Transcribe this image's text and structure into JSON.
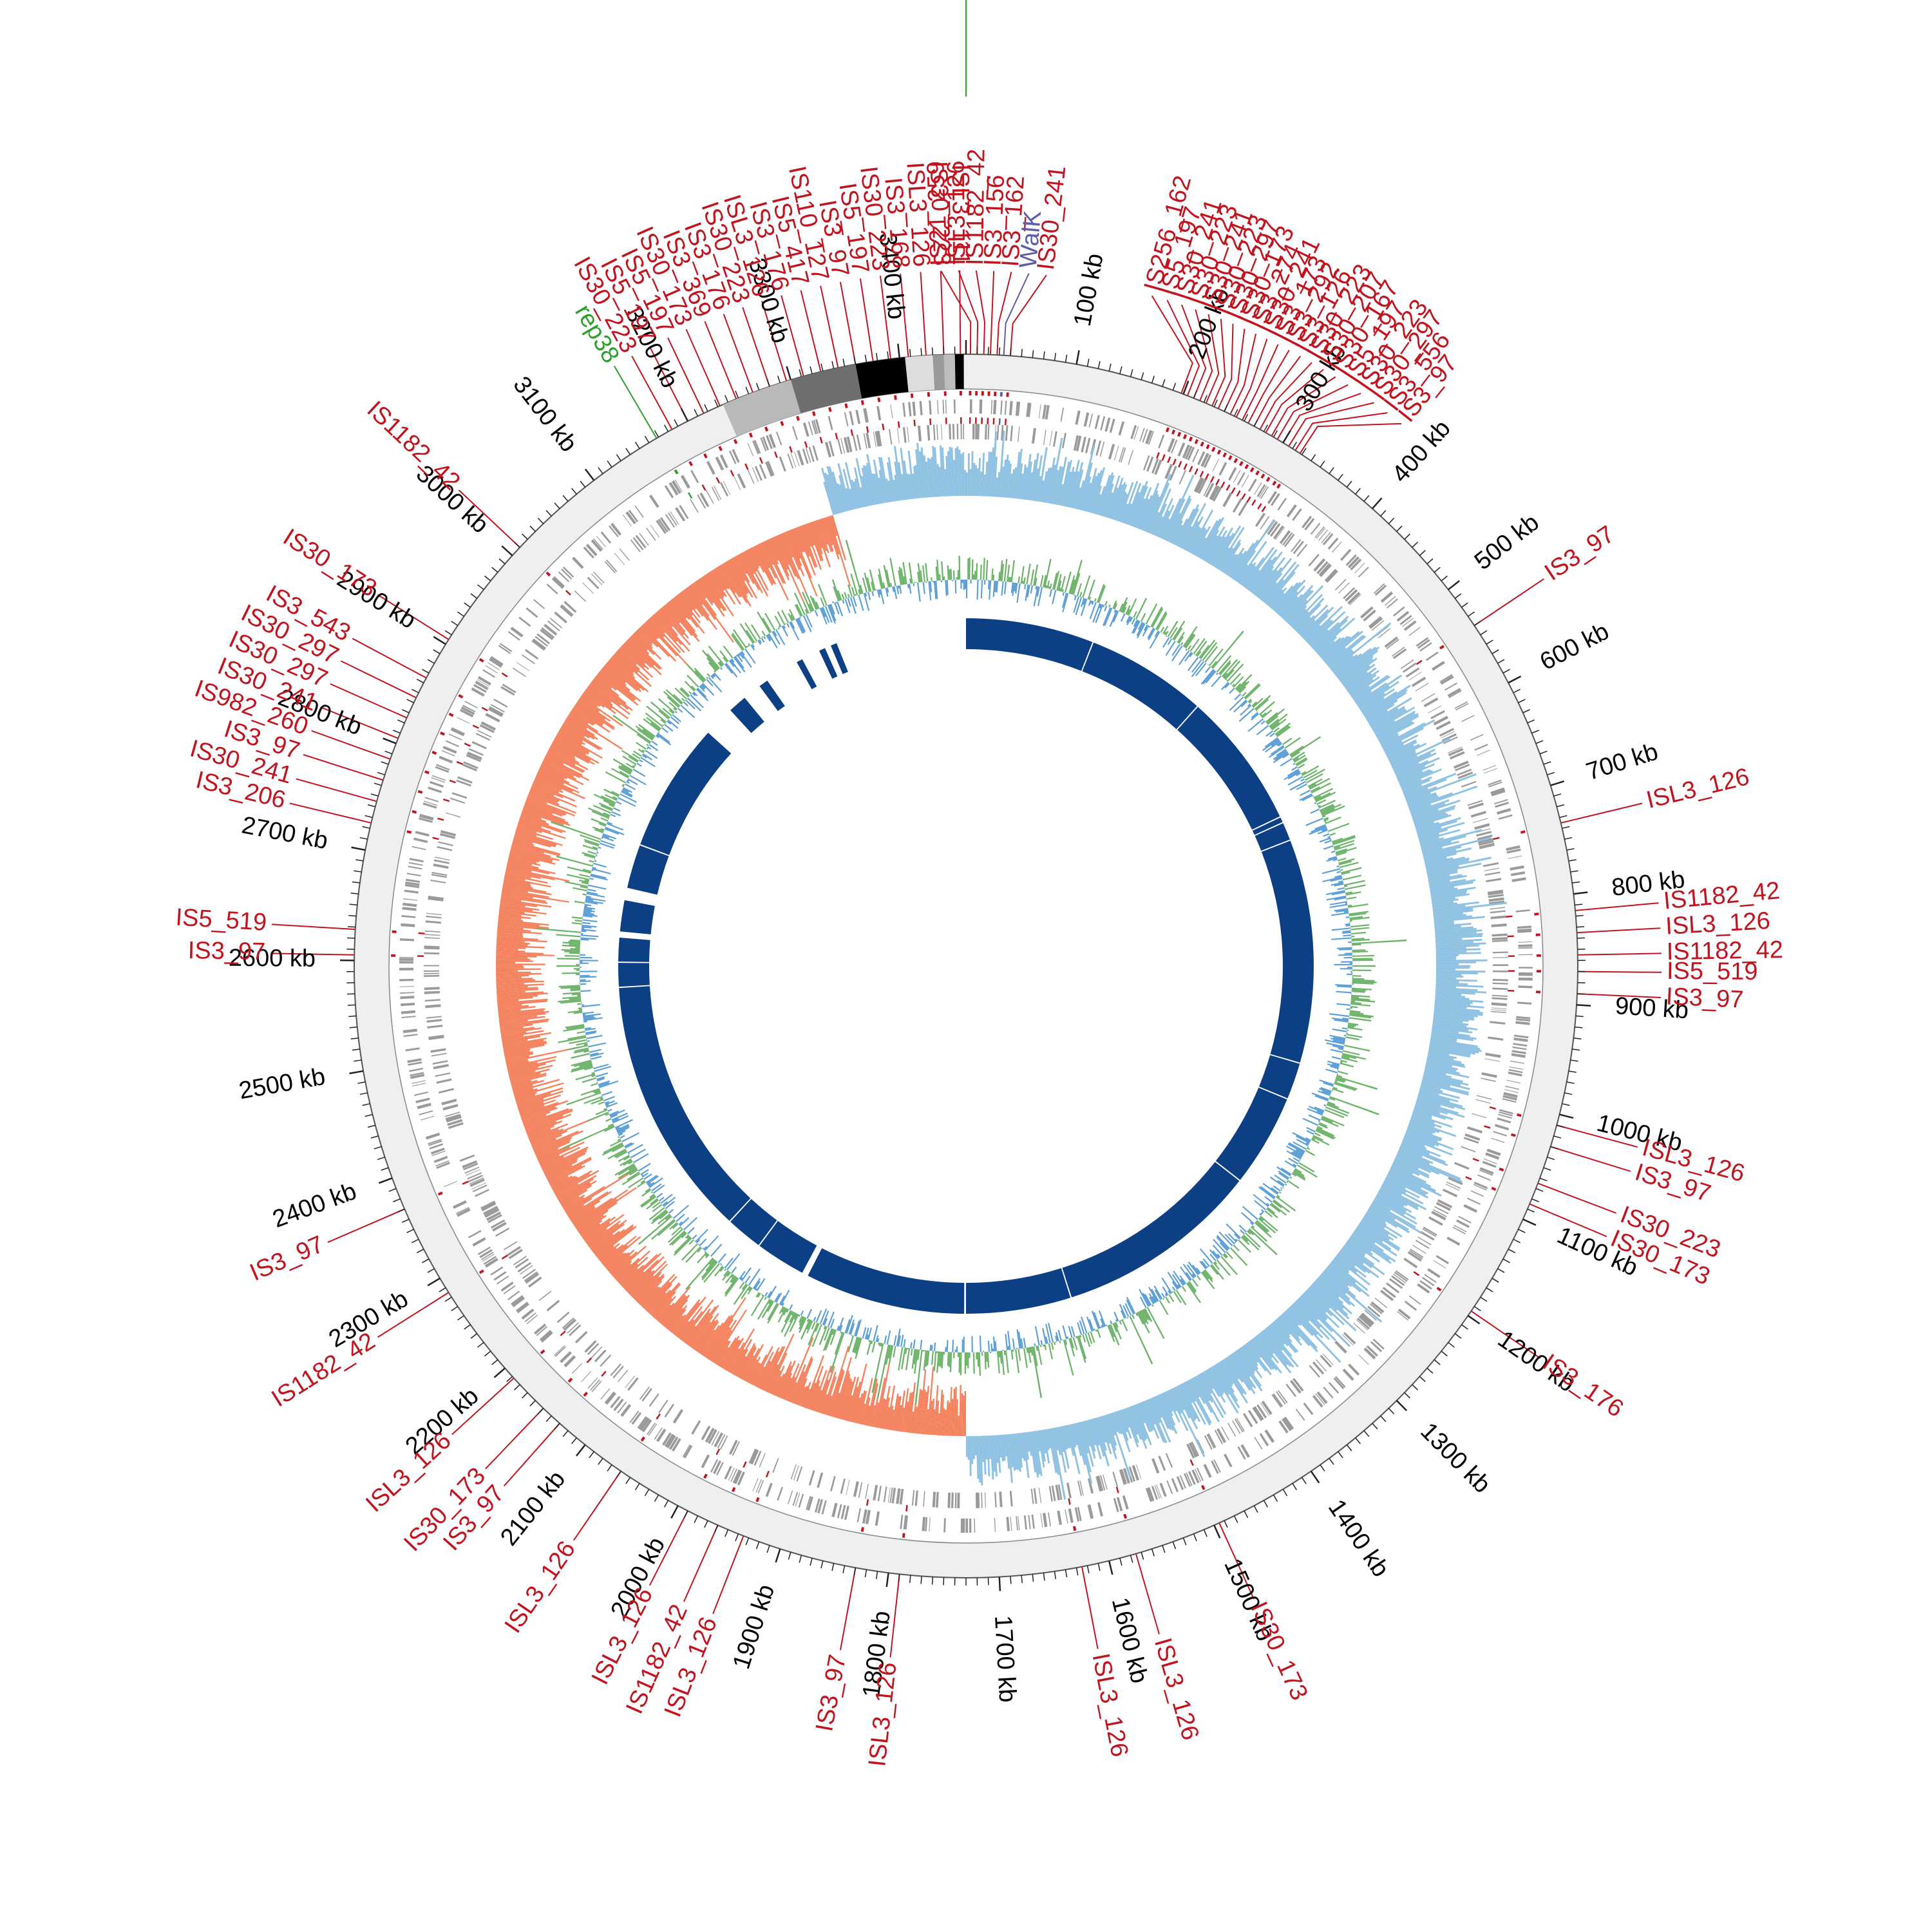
{
  "map": {
    "genome_size_kb": 3460,
    "tick_labels": [
      "100 kb",
      "200 kb",
      "300 kb",
      "400 kb",
      "500 kb",
      "600 kb",
      "700 kb",
      "800 kb",
      "900 kb",
      "1000 kb",
      "1100 kb",
      "1200 kb",
      "1300 kb",
      "1400 kb",
      "1500 kb",
      "1600 kb",
      "1700 kb",
      "1800 kb",
      "1900 kb",
      "2000 kb",
      "2100 kb",
      "2200 kb",
      "2300 kb",
      "2400 kb",
      "2500 kb",
      "2600 kb",
      "2700 kb",
      "2800 kb",
      "2900 kb",
      "3000 kb",
      "3100 kb",
      "3200 kb",
      "3300 kb",
      "3400 kb"
    ],
    "colors": {
      "is_element": "#c0141f",
      "rep": "#2ca02c",
      "walk": "#5b5ea6",
      "gene_ticks": "#9a9a9a",
      "outer_ring": "#efefef",
      "gc_skew_positive": "#8fc1e3",
      "gc_skew_negative": "#f4825e",
      "gc_content_positive": "#6db36a",
      "gc_content_negative": "#5b9ed6",
      "synteny_blocks": "#0d3f85"
    },
    "annotations": [
      {
        "label": "IS3_97",
        "kb": 318,
        "color": "is"
      },
      {
        "label": "IS3_556",
        "kb": 313,
        "color": "is"
      },
      {
        "label": "IS30_297",
        "kb": 306,
        "color": "is"
      },
      {
        "label": "IS30_223",
        "kb": 300,
        "color": "is"
      },
      {
        "label": "IS5_197",
        "kb": 294,
        "color": "is"
      },
      {
        "label": "IS30_167",
        "kb": 288,
        "color": "is"
      },
      {
        "label": "IS30_207",
        "kb": 282,
        "color": "is"
      },
      {
        "label": "IS30_223",
        "kb": 276,
        "color": "is"
      },
      {
        "label": "IS3_126",
        "kb": 270,
        "color": "is"
      },
      {
        "label": "IS3_292",
        "kb": 264,
        "color": "is"
      },
      {
        "label": "IS3_173",
        "kb": 258,
        "color": "is"
      },
      {
        "label": "IS30_241",
        "kb": 252,
        "color": "is"
      },
      {
        "label": "IS3_274",
        "kb": 246,
        "color": "is"
      },
      {
        "label": "IS30_173",
        "kb": 240,
        "color": "is"
      },
      {
        "label": "IS30_297",
        "kb": 234,
        "color": "is"
      },
      {
        "label": "IS30_223",
        "kb": 228,
        "color": "is"
      },
      {
        "label": "IS30_241",
        "kb": 222,
        "color": "is"
      },
      {
        "label": "IS30_223",
        "kb": 216,
        "color": "is"
      },
      {
        "label": "IS30_241",
        "kb": 210,
        "color": "is"
      },
      {
        "label": "IS5_197",
        "kb": 204,
        "color": "is"
      },
      {
        "label": "IS256_162",
        "kb": 198,
        "color": "is"
      },
      {
        "label": "IS30_241",
        "kb": 40,
        "color": "is"
      },
      {
        "label": "WalK",
        "kb": 34,
        "color": "walk"
      },
      {
        "label": "IS3_162",
        "kb": 28,
        "color": "is"
      },
      {
        "label": "IS3_156",
        "kb": 22,
        "color": "is"
      },
      {
        "label": "IS1182_42",
        "kb": 16,
        "color": "is"
      },
      {
        "label": "ISL3_126",
        "kb": 10,
        "color": "is"
      },
      {
        "label": "IS21_259",
        "kb": 4,
        "color": "is"
      },
      {
        "label": "ISL3_111",
        "kb": 3455,
        "color": "is"
      },
      {
        "label": "IS30_223",
        "kb": 3440,
        "color": "is"
      },
      {
        "label": "ISL3_126",
        "kb": 3424,
        "color": "is"
      },
      {
        "label": "IS3_168",
        "kb": 3408,
        "color": "is"
      },
      {
        "label": "IS30_223",
        "kb": 3392,
        "color": "is"
      },
      {
        "label": "IS5_197",
        "kb": 3376,
        "color": "is"
      },
      {
        "label": "IS3_97",
        "kb": 3360,
        "color": "is"
      },
      {
        "label": "IS110_127",
        "kb": 3344,
        "color": "is"
      },
      {
        "label": "IS5_417",
        "kb": 3328,
        "color": "is"
      },
      {
        "label": "IS3_176",
        "kb": 3312,
        "color": "is"
      },
      {
        "label": "ISL3_126",
        "kb": 3296,
        "color": "is"
      },
      {
        "label": "IS30_223",
        "kb": 3280,
        "color": "is"
      },
      {
        "label": "IS3_176",
        "kb": 3264,
        "color": "is"
      },
      {
        "label": "IS3_369",
        "kb": 3248,
        "color": "is"
      },
      {
        "label": "IS30_173",
        "kb": 3232,
        "color": "is"
      },
      {
        "label": "IS5_197",
        "kb": 3216,
        "color": "is"
      },
      {
        "label": "IS5_197",
        "kb": 3200,
        "color": "is"
      },
      {
        "label": "IS30_223",
        "kb": 3184,
        "color": "is"
      },
      {
        "label": "rep38",
        "kb": 3168,
        "color": "rep"
      },
      {
        "label": "IS1182_42",
        "kb": 3010,
        "color": "is"
      },
      {
        "label": "IS30_173",
        "kb": 2905,
        "color": "is"
      },
      {
        "label": "IS3_543",
        "kb": 2865,
        "color": "is"
      },
      {
        "label": "IS30_297",
        "kb": 2845,
        "color": "is"
      },
      {
        "label": "IS30_297",
        "kb": 2825,
        "color": "is"
      },
      {
        "label": "IS30_241",
        "kb": 2805,
        "color": "is"
      },
      {
        "label": "IS982_260",
        "kb": 2785,
        "color": "is"
      },
      {
        "label": "IS3_97",
        "kb": 2765,
        "color": "is"
      },
      {
        "label": "IS30_241",
        "kb": 2745,
        "color": "is"
      },
      {
        "label": "IS3_206",
        "kb": 2725,
        "color": "is"
      },
      {
        "label": "IS5_519",
        "kb": 2628,
        "color": "is"
      },
      {
        "label": "IS3_97",
        "kb": 2605,
        "color": "is"
      },
      {
        "label": "IS3_97",
        "kb": 2370,
        "color": "is"
      },
      {
        "label": "IS1182_42",
        "kb": 2285,
        "color": "is"
      },
      {
        "label": "ISL3_126",
        "kb": 2188,
        "color": "is"
      },
      {
        "label": "IS30_173",
        "kb": 2150,
        "color": "is"
      },
      {
        "label": "IS3_97",
        "kb": 2130,
        "color": "is"
      },
      {
        "label": "ISL3_126",
        "kb": 2060,
        "color": "is"
      },
      {
        "label": "ISL3_126",
        "kb": 1990,
        "color": "is"
      },
      {
        "label": "IS1182_42",
        "kb": 1960,
        "color": "is"
      },
      {
        "label": "ISL3_126",
        "kb": 1935,
        "color": "is"
      },
      {
        "label": "IS3_97",
        "kb": 1830,
        "color": "is"
      },
      {
        "label": "ISL3_126",
        "kb": 1790,
        "color": "is"
      },
      {
        "label": "ISL3_126",
        "kb": 1625,
        "color": "is"
      },
      {
        "label": "ISL3_126",
        "kb": 1575,
        "color": "is"
      },
      {
        "label": "IS30_173",
        "kb": 1495,
        "color": "is"
      },
      {
        "label": "IS3_176",
        "kb": 1195,
        "color": "is"
      },
      {
        "label": "IS30_173",
        "kb": 1085,
        "color": "is"
      },
      {
        "label": "IS30_223",
        "kb": 1065,
        "color": "is"
      },
      {
        "label": "IS3_97",
        "kb": 1030,
        "color": "is"
      },
      {
        "label": "ISL3_126",
        "kb": 1010,
        "color": "is"
      },
      {
        "label": "IS3_97",
        "kb": 890,
        "color": "is"
      },
      {
        "label": "IS5_519",
        "kb": 870,
        "color": "is"
      },
      {
        "label": "IS1182_42",
        "kb": 855,
        "color": "is"
      },
      {
        "label": "ISL3_126",
        "kb": 835,
        "color": "is"
      },
      {
        "label": "IS1182_42",
        "kb": 815,
        "color": "is"
      },
      {
        "label": "ISL3_126",
        "kb": 735,
        "color": "is"
      },
      {
        "label": "IS3_97",
        "kb": 540,
        "color": "is"
      }
    ]
  }
}
